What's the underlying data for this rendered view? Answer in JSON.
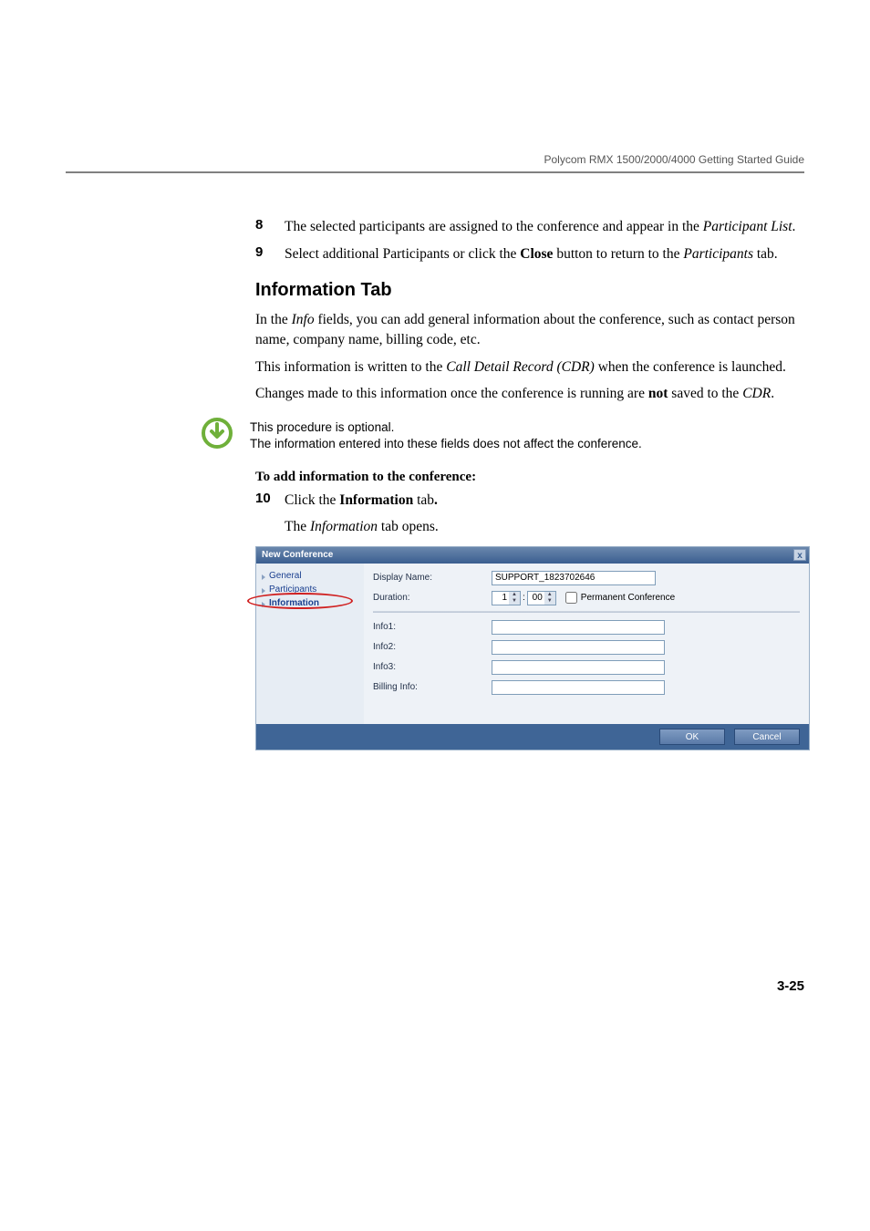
{
  "runningHead": "Polycom RMX 1500/2000/4000 Getting Started Guide",
  "steps_a": [
    {
      "num": "8",
      "html": "The selected participants are assigned to the conference and appear in the <span class=\"italic\">Participant List</span>."
    },
    {
      "num": "9",
      "html": "Select additional Participants or click the <span class=\"bold\">Close</span> button to return to the <span class=\"italic\">Participants</span> tab."
    }
  ],
  "h2": "Information Tab",
  "paras": [
    "In the <span class=\"italic\">Info</span> fields, you can add general information about the conference, such as contact person name, company name, billing code, etc.",
    "This information is written to the <span class=\"italic\">Call Detail Record (CDR)</span> when the conference is launched.",
    "Changes made to this information once the conference is running are <span class=\"bold\">not</span> saved to the <span class=\"italic\">CDR</span>."
  ],
  "note": {
    "line1": "This procedure is optional.",
    "line2": "The information entered into these fields does not affect the conference."
  },
  "procHeading": "To add information to the conference:",
  "steps_b": [
    {
      "num": "10",
      "html": "Click the <span class=\"bold\">Information</span> tab<span class=\"bold\">.</span>"
    }
  ],
  "subPara": "The <span class=\"italic\">Information</span> tab opens.",
  "dialog": {
    "title": "New Conference",
    "nav": {
      "general": "General",
      "participants": "Participants",
      "information": "Information"
    },
    "labels": {
      "displayName": "Display Name:",
      "duration": "Duration:",
      "permanent": "Permanent Conference",
      "info1": "Info1:",
      "info2": "Info2:",
      "info3": "Info3:",
      "billing": "Billing Info:"
    },
    "values": {
      "displayName": "SUPPORT_1823702646",
      "durH": "1",
      "durM": "00"
    },
    "buttons": {
      "ok": "OK",
      "cancel": "Cancel"
    }
  },
  "pageNum": "3-25",
  "colors": {
    "noteRing": "#6fb03a"
  }
}
